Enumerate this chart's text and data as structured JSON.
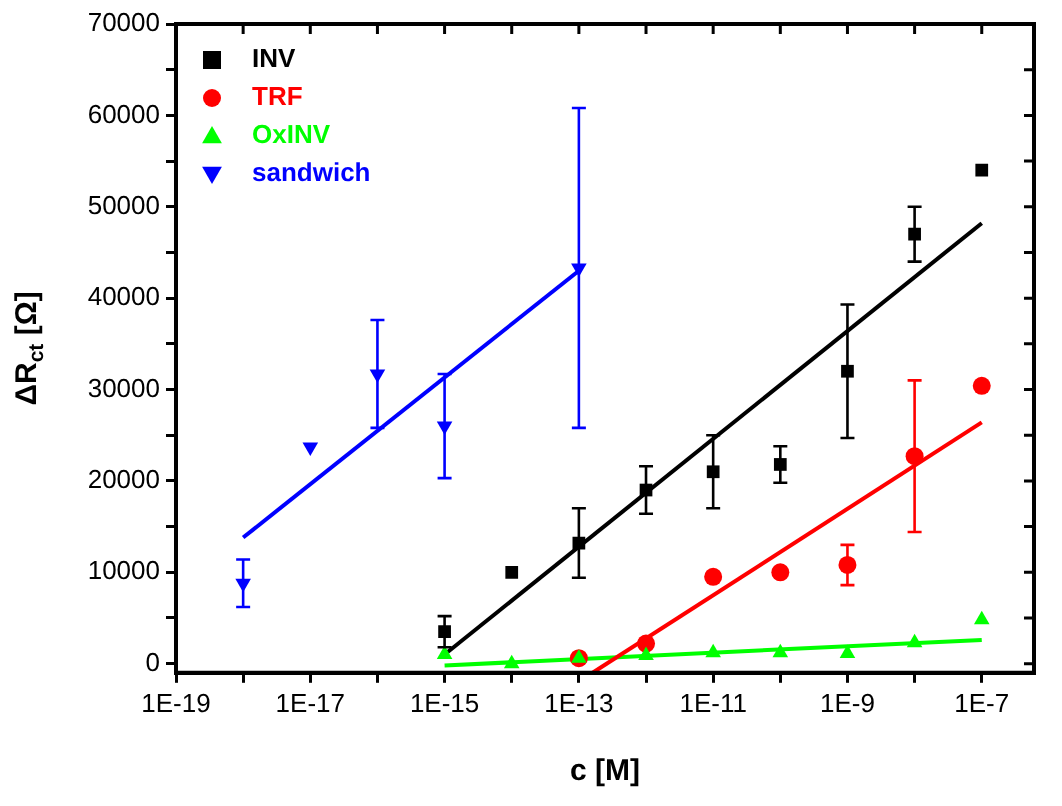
{
  "chart_data": {
    "type": "scatter",
    "xlabel": "c [M]",
    "ylabel": "ΔR$_{ct}$ [Ω]",
    "log": "x",
    "grid": false,
    "legend": "top left",
    "xlim": [
      1e-19,
      6e-07
    ],
    "xticks": [
      {
        "value": 1e-19,
        "label": "1E-19"
      },
      {
        "value": 1e-18,
        "label": null
      },
      {
        "value": 1e-17,
        "label": "1E-17"
      },
      {
        "value": 1e-16,
        "label": null
      },
      {
        "value": 1e-15,
        "label": "1E-15"
      },
      {
        "value": 1e-14,
        "label": null
      },
      {
        "value": 1e-13,
        "label": "1E-13"
      },
      {
        "value": 1e-12,
        "label": null
      },
      {
        "value": 1e-11,
        "label": "1E-11"
      },
      {
        "value": 1e-10,
        "label": null
      },
      {
        "value": 1e-09,
        "label": "1E-9"
      },
      {
        "value": 1e-08,
        "label": null
      },
      {
        "value": 1e-07,
        "label": "1E-7"
      }
    ],
    "ylim": [
      -1000,
      70000
    ],
    "yticks": [
      0,
      {
        "value": 5000,
        "label": null
      },
      10000,
      {
        "value": 15000,
        "label": null
      },
      20000,
      {
        "value": 25000,
        "label": null
      },
      30000,
      {
        "value": 35000,
        "label": null
      },
      40000,
      {
        "value": 45000,
        "label": null
      },
      50000,
      {
        "value": 55000,
        "label": null
      },
      60000,
      {
        "value": 65000,
        "label": null
      },
      70000
    ],
    "series": [
      {
        "name": "INV",
        "type": "scatter",
        "marker": "square",
        "color": "#000000",
        "x": [
          1e-15,
          1e-14,
          1e-13,
          1e-12,
          1e-11,
          1e-10,
          1e-09,
          1e-08,
          1e-07
        ],
        "values": [
          3500,
          10000,
          13200,
          19000,
          21000,
          21800,
          32000,
          47000,
          54000
        ],
        "errors": [
          1700,
          null,
          3800,
          2600,
          4000,
          2000,
          7300,
          3000,
          null
        ]
      },
      {
        "name": "TRF",
        "type": "scatter",
        "marker": "circle",
        "color": "#ff0000",
        "x": [
          1e-13,
          1e-12,
          1e-11,
          1e-10,
          1e-09,
          1e-08,
          1e-07
        ],
        "values": [
          600,
          2200,
          9500,
          10000,
          10800,
          22700,
          30400
        ],
        "errors": [
          null,
          null,
          null,
          null,
          2200,
          8300,
          null
        ]
      },
      {
        "name": "OxINV",
        "type": "scatter",
        "marker": "triangle",
        "color": "#00ff00",
        "x": [
          1e-15,
          1e-14,
          1e-13,
          1e-12,
          1e-11,
          1e-10,
          1e-09,
          1e-08,
          1e-07
        ],
        "values": [
          1000,
          0,
          600,
          900,
          1200,
          1200,
          1100,
          2300,
          4800
        ]
      },
      {
        "name": "sandwich",
        "type": "scatter",
        "marker": "triangle-down",
        "color": "#0000ff",
        "x": [
          1e-18,
          1e-17,
          1e-16,
          1e-15,
          1e-13
        ],
        "values": [
          8800,
          23700,
          31700,
          26000,
          43300
        ],
        "errors": [
          2600,
          null,
          5900,
          5700,
          17500
        ]
      },
      {
        "type": "line",
        "marker": "none",
        "color": "#000000",
        "x": [
          1e-15,
          1e-07
        ],
        "values": [
          1000,
          48200
        ]
      },
      {
        "type": "line",
        "marker": "none",
        "color": "#ff0000",
        "x": [
          1.6e-13,
          1e-07
        ],
        "values": [
          -1000,
          26400
        ]
      },
      {
        "type": "line",
        "marker": "none",
        "color": "#00ff00",
        "x": [
          1e-15,
          1e-07
        ],
        "values": [
          -200,
          2600
        ]
      },
      {
        "type": "line",
        "marker": "none",
        "color": "#0000ff",
        "x": [
          1e-18,
          1e-13
        ],
        "values": [
          13800,
          43000
        ]
      }
    ]
  }
}
